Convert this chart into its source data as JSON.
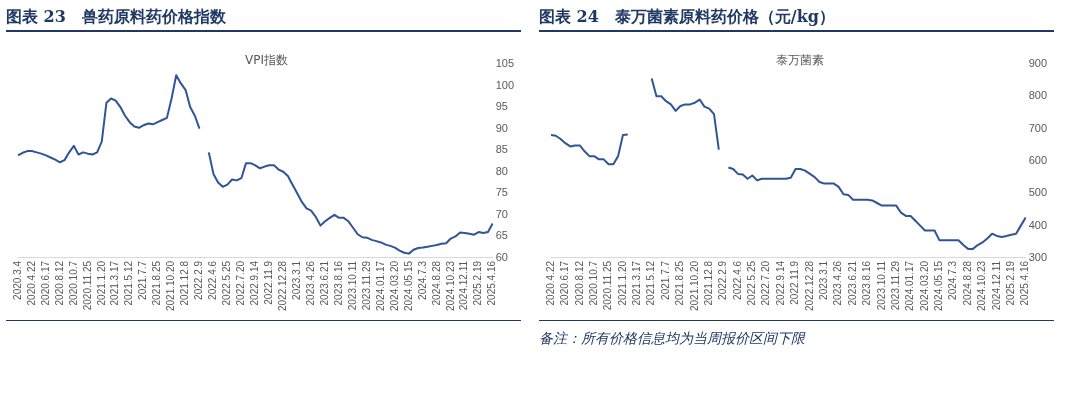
{
  "chart_data": [
    {
      "type": "line",
      "title": "图表 23　兽药原料药价格指数",
      "subtitle": "VPI指数",
      "marker": "none",
      "categories": [
        "2020.3.4",
        null,
        null,
        "2020.4.22",
        null,
        null,
        "2020.6.17",
        null,
        null,
        "2020.8.12",
        null,
        null,
        "2020.10.7",
        null,
        null,
        "2020.11.25",
        null,
        null,
        "2021.1.20",
        null,
        null,
        "2021.3.17",
        null,
        null,
        "2021.5.12",
        null,
        null,
        "2021.7.7",
        null,
        null,
        "2021.8.25",
        null,
        null,
        "2021.10.20",
        null,
        null,
        "2021.12.8",
        null,
        null,
        "2022.2.9",
        null,
        null,
        "2022.4.6",
        null,
        null,
        "2022.5.25",
        null,
        null,
        "2022.7.20",
        null,
        null,
        "2022.9.14",
        null,
        null,
        "2022.11.9",
        null,
        null,
        "2022.12.28",
        null,
        null,
        "2023.3.1",
        null,
        null,
        "2023.4.26",
        null,
        null,
        "2023.6.21",
        null,
        null,
        "2023.8.16",
        null,
        null,
        "2023.10.11",
        null,
        null,
        "2023.11.29",
        null,
        null,
        "2024.01.17",
        null,
        null,
        "2024.03.20",
        null,
        null,
        "2024.05.15",
        null,
        null,
        "2024.7.3",
        null,
        null,
        "2024.8.28",
        null,
        null,
        "2024.10.23",
        null,
        null,
        "2024.12.11",
        null,
        null,
        "2025.2.19",
        null,
        null,
        "2025.4.16"
      ],
      "series": [
        {
          "color": "#2f5597",
          "values": [
            83.8,
            84.4,
            84.8,
            84.8,
            84.5,
            84.2,
            83.8,
            83.3,
            82.8,
            82.2,
            82.7,
            84.5,
            86,
            84,
            84.5,
            84.2,
            84,
            84.5,
            87,
            96,
            97,
            96.5,
            95,
            93,
            91.5,
            90.5,
            90.2,
            90.8,
            91.2,
            91,
            91.5,
            92,
            92.5,
            97,
            102.4,
            100.5,
            99,
            95,
            93,
            90,
            null,
            84.5,
            79.5,
            77.5,
            76.5,
            77,
            78.2,
            78,
            78.5,
            82,
            82,
            81.5,
            80.8,
            81.2,
            81.5,
            81.5,
            80.5,
            80,
            79,
            77,
            75,
            73,
            71.5,
            71,
            69.5,
            67.5,
            68.5,
            69.3,
            70,
            69.3,
            69.3,
            68.5,
            67,
            65.5,
            64.8,
            64.7,
            64.2,
            63.9,
            63.6,
            63.1,
            62.8,
            62.4,
            61.7,
            61.2,
            61,
            61.9,
            62.3,
            62.4,
            62.6,
            62.8,
            63,
            63.3,
            63.4,
            64.5,
            65,
            65.9,
            65.8,
            65.6,
            65.4,
            66,
            65.8,
            66,
            68
          ]
        }
      ],
      "ylim": [
        60,
        105
      ],
      "yticks": [
        60,
        65,
        70,
        75,
        80,
        85,
        90,
        95,
        100,
        105
      ]
    },
    {
      "type": "line",
      "title": "图表 24　泰万菌素原料药价格（元/kg）",
      "subtitle": "泰万菌素",
      "marker": "none",
      "annotations": [
        "备注：所有价格信息均为当周报价区间下限"
      ],
      "categories": [
        "2020.4.22",
        null,
        null,
        "2020.6.17",
        null,
        null,
        "2020.8.12",
        null,
        null,
        "2020.10.7",
        null,
        null,
        "2020.11.25",
        null,
        null,
        "2021.1.20",
        null,
        null,
        "2021.3.17",
        null,
        null,
        "2021.5.12",
        null,
        null,
        "2021.7.7",
        null,
        null,
        "2021.8.25",
        null,
        null,
        "2021.10.20",
        null,
        null,
        "2021.12.8",
        null,
        null,
        "2022.2.9",
        null,
        null,
        "2022.4.6",
        null,
        null,
        "2022.5.25",
        null,
        null,
        "2022.7.20",
        null,
        null,
        "2022.9.14",
        null,
        null,
        "2022.11.9",
        null,
        null,
        "2022.12.28",
        null,
        null,
        "2023.3.1",
        null,
        null,
        "2023.4.26",
        null,
        null,
        "2023.6.21",
        null,
        null,
        "2023.8.16",
        null,
        null,
        "2023.10.11",
        null,
        null,
        "2023.11.29",
        null,
        null,
        "2024.01.17",
        null,
        null,
        "2024.03.20",
        null,
        null,
        "2024.05.15",
        null,
        null,
        "2024.7.3",
        null,
        null,
        "2024.8.28",
        null,
        null,
        "2024.10.23",
        null,
        null,
        "2024.12.11",
        null,
        null,
        "2025.2.19",
        null,
        null,
        "2025.4.16"
      ],
      "series": [
        {
          "color": "#2f5597",
          "values": [
            680,
            678,
            668,
            655,
            645,
            648,
            648,
            630,
            615,
            615,
            605,
            605,
            590,
            590,
            615,
            680,
            682,
            null,
            null,
            null,
            null,
            855,
            800,
            800,
            785,
            775,
            755,
            770,
            775,
            775,
            780,
            790,
            768,
            762,
            745,
            635,
            null,
            580,
            575,
            560,
            558,
            545,
            555,
            540,
            545,
            545,
            545,
            545,
            545,
            545,
            548,
            575,
            575,
            570,
            560,
            550,
            535,
            530,
            530,
            530,
            520,
            497,
            495,
            480,
            480,
            480,
            480,
            478,
            470,
            462,
            462,
            462,
            462,
            440,
            430,
            430,
            415,
            400,
            385,
            385,
            385,
            355,
            355,
            355,
            355,
            355,
            340,
            328,
            328,
            340,
            348,
            360,
            375,
            368,
            365,
            368,
            372,
            375,
            400,
            425
          ]
        }
      ],
      "ylim": [
        300,
        900
      ],
      "yticks": [
        300,
        400,
        500,
        600,
        700,
        800,
        900
      ]
    }
  ]
}
